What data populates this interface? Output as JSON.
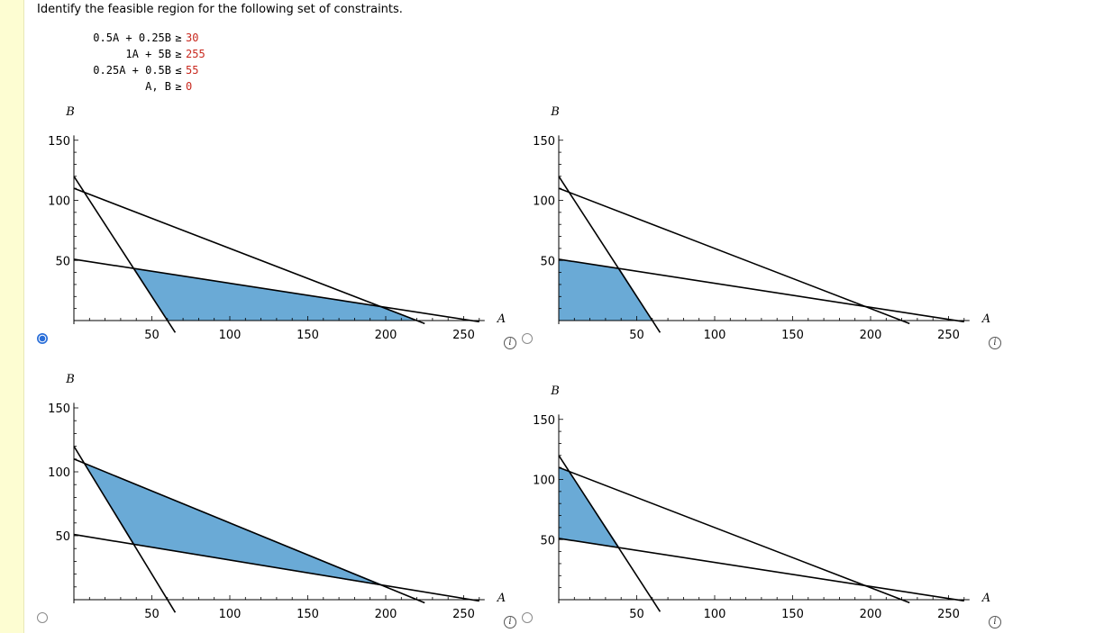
{
  "question": "Identify the feasible region for the following set of constraints.",
  "constraints": [
    {
      "lhs": "0.5A + 0.25B",
      "op": "≥",
      "rhs": "30"
    },
    {
      "lhs": "1A + 5B",
      "op": "≥",
      "rhs": "255"
    },
    {
      "lhs": "0.25A + 0.5B",
      "op": "≤",
      "rhs": "55"
    },
    {
      "lhs": "A, B",
      "op": "≥",
      "rhs": "0"
    }
  ],
  "axis": {
    "x_name": "A",
    "y_name": "B",
    "x_ticks": [
      "50",
      "100",
      "150",
      "200",
      "250"
    ],
    "y_ticks": [
      "50",
      "100",
      "150"
    ]
  },
  "colors": {
    "region": "#6aaad6",
    "region_edge": "#4a78a8",
    "radio": "#2a6ed8"
  },
  "info_icon": {
    "name": "info-icon",
    "glyph": "i"
  },
  "options": [
    {
      "id": 1,
      "selected": true,
      "region": "A,B >= 0 with 0.5A+0.25B >= 30, A+5B >= 255, 0.25A+0.5B <= 55"
    },
    {
      "id": 2,
      "selected": false,
      "region": "B >= 51, 0.5A+0.25B <= 30"
    },
    {
      "id": 3,
      "selected": false,
      "region": "0.5A+0.25B >= 30, A+5B >= 255, 0.25A+0.5B <= 55 (above B line)"
    },
    {
      "id": 4,
      "selected": false,
      "region": "A >= 0, A+5B >= 255, 0.5A+0.25B <= 30"
    }
  ],
  "chart_data": [
    {
      "type": "line",
      "title": "",
      "xlabel": "A",
      "ylabel": "B",
      "xlim": [
        0,
        260
      ],
      "ylim": [
        0,
        150
      ],
      "series": [
        {
          "x": [
            0,
            60
          ],
          "y": [
            120,
            0
          ]
        },
        {
          "x": [
            0,
            255
          ],
          "y": [
            51,
            0
          ]
        },
        {
          "x": [
            0,
            220
          ],
          "y": [
            110,
            0
          ]
        }
      ],
      "shaded_polygon": [
        [
          38.8,
          43.2
        ],
        [
          60,
          0
        ],
        [
          220,
          0
        ],
        [
          198.3,
          11.2
        ]
      ]
    },
    {
      "type": "line",
      "title": "",
      "xlabel": "A",
      "ylabel": "B",
      "xlim": [
        0,
        260
      ],
      "ylim": [
        0,
        150
      ],
      "series": [
        {
          "x": [
            0,
            60
          ],
          "y": [
            120,
            0
          ]
        },
        {
          "x": [
            0,
            255
          ],
          "y": [
            51,
            0
          ]
        },
        {
          "x": [
            0,
            220
          ],
          "y": [
            110,
            0
          ]
        }
      ],
      "shaded_polygon": [
        [
          0,
          51
        ],
        [
          38.8,
          43.2
        ],
        [
          60,
          0
        ],
        [
          0,
          0
        ]
      ]
    },
    {
      "type": "line",
      "title": "",
      "xlabel": "A",
      "ylabel": "B",
      "xlim": [
        0,
        260
      ],
      "ylim": [
        0,
        150
      ],
      "series": [
        {
          "x": [
            0,
            60
          ],
          "y": [
            120,
            0
          ]
        },
        {
          "x": [
            0,
            255
          ],
          "y": [
            51,
            0
          ]
        },
        {
          "x": [
            0,
            220
          ],
          "y": [
            110,
            0
          ]
        }
      ],
      "shaded_polygon": [
        [
          6.7,
          106.7
        ],
        [
          38.8,
          43.2
        ],
        [
          198.3,
          11.2
        ]
      ]
    },
    {
      "type": "line",
      "title": "",
      "xlabel": "A",
      "ylabel": "B",
      "xlim": [
        0,
        260
      ],
      "ylim": [
        0,
        150
      ],
      "series": [
        {
          "x": [
            0,
            60
          ],
          "y": [
            120,
            0
          ]
        },
        {
          "x": [
            0,
            255
          ],
          "y": [
            51,
            0
          ]
        },
        {
          "x": [
            0,
            220
          ],
          "y": [
            110,
            0
          ]
        }
      ],
      "shaded_polygon": [
        [
          0,
          110
        ],
        [
          6.7,
          106.7
        ],
        [
          38.8,
          43.2
        ],
        [
          0,
          51
        ]
      ]
    }
  ]
}
